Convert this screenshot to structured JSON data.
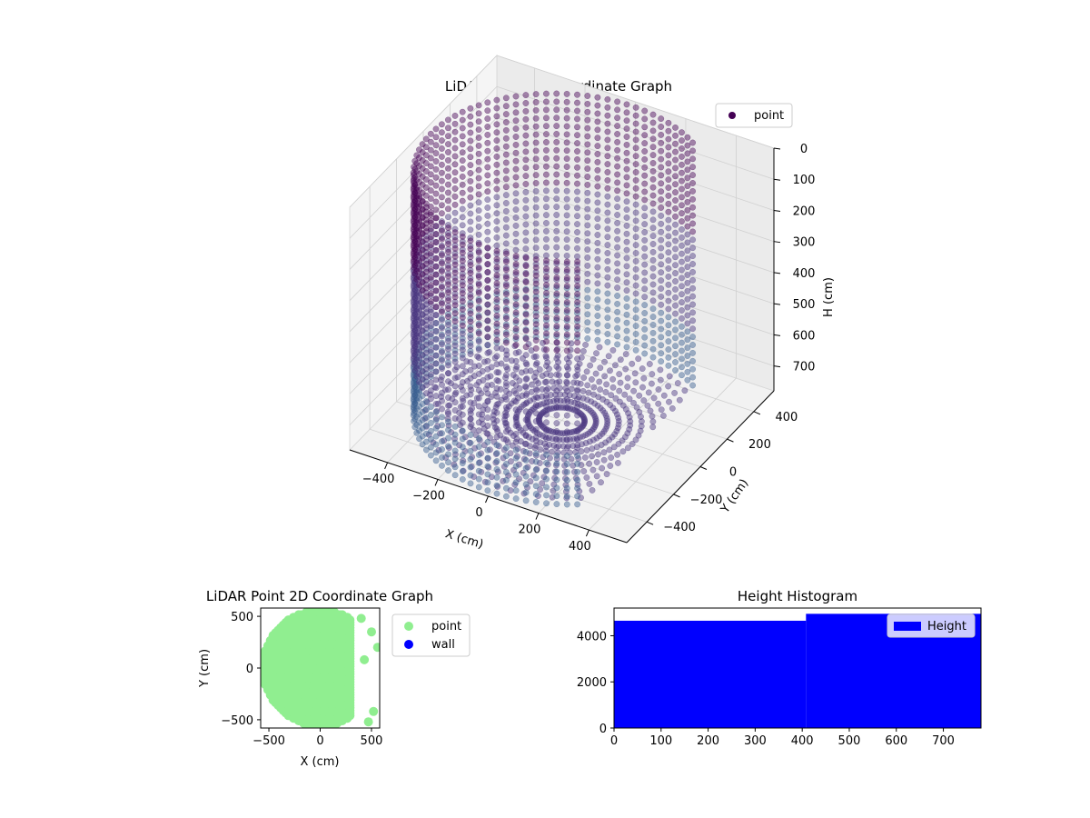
{
  "chart_data": [
    {
      "type": "scatter3d",
      "title": "LiDAR Point 3D Coordinate Graph",
      "xlabel": "X (cm)",
      "ylabel": "Y (cm)",
      "zlabel": "H (cm)",
      "x_ticks": [
        "−400",
        "−200",
        "0",
        "200",
        "400"
      ],
      "y_ticks": [
        "−400",
        "−200",
        "0",
        "200",
        "400"
      ],
      "z_ticks": [
        "0",
        "100",
        "200",
        "300",
        "400",
        "500",
        "600",
        "700"
      ],
      "xlim": [
        -550,
        550
      ],
      "ylim": [
        -550,
        550
      ],
      "zlim": [
        0,
        780
      ],
      "z_inverted": true,
      "grid": true,
      "legend": {
        "position": "upper-right",
        "entries": [
          "point"
        ]
      },
      "series": [
        {
          "name": "point",
          "color": "#440154",
          "shape": "cylindrical wall of points, radius ~520 cm, heights 0-780 cm, colored by height (viridis), open on the +X side"
        }
      ]
    },
    {
      "type": "scatter",
      "title": "LiDAR Point 2D Coordinate Graph",
      "xlabel": "X (cm)",
      "ylabel": "Y (cm)",
      "x_ticks": [
        "−500",
        "0",
        "500"
      ],
      "y_ticks": [
        "−500",
        "0",
        "500"
      ],
      "xlim": [
        -580,
        580
      ],
      "ylim": [
        -580,
        580
      ],
      "legend": {
        "position": "outside-right",
        "entries": [
          "point",
          "wall"
        ]
      },
      "series": [
        {
          "name": "point",
          "color": "#90ee90",
          "shape": "filled disk, radius ~560 cm, cut at x ~300 cm"
        },
        {
          "name": "wall",
          "color": "#0000ff"
        }
      ]
    },
    {
      "type": "bar",
      "title": "Height Histogram",
      "xlabel": "",
      "ylabel": "",
      "x_ticks": [
        "0",
        "100",
        "200",
        "300",
        "400",
        "500",
        "600",
        "700"
      ],
      "y_ticks": [
        "0",
        "2000",
        "4000"
      ],
      "xlim": [
        0,
        780
      ],
      "ylim": [
        0,
        5200
      ],
      "legend": {
        "position": "upper-right",
        "entries": [
          "Height"
        ]
      },
      "series": [
        {
          "name": "Height",
          "color": "#0000ff",
          "bins": [
            {
              "x0": 0,
              "x1": 408,
              "value": 4650
            },
            {
              "x0": 408,
              "x1": 780,
              "value": 4950
            }
          ]
        }
      ]
    }
  ]
}
